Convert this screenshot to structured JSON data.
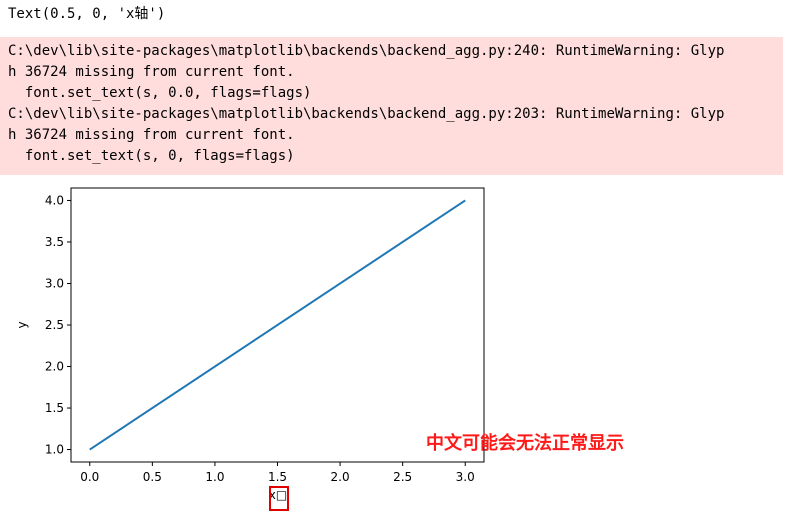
{
  "output": {
    "return_value": "Text(0.5, 0, 'x轴')"
  },
  "stderr": {
    "lines": [
      "C:\\dev\\lib\\site-packages\\matplotlib\\backends\\backend_agg.py:240: RuntimeWarning: Glyp",
      "h 36724 missing from current font.",
      "  font.set_text(s, 0.0, flags=flags)",
      "C:\\dev\\lib\\site-packages\\matplotlib\\backends\\backend_agg.py:203: RuntimeWarning: Glyp",
      "h 36724 missing from current font.",
      "  font.set_text(s, 0, flags=flags)"
    ],
    "background_color": "#ffdddd"
  },
  "chart_data": {
    "type": "line",
    "x": [
      0,
      3
    ],
    "series": [
      {
        "values": [
          1,
          4
        ],
        "color": "#1f77b4"
      }
    ],
    "xlabel": "x□",
    "ylabel": "y",
    "xlim": [
      -0.15,
      3.15
    ],
    "ylim": [
      0.85,
      4.15
    ],
    "xticks": [
      "0.0",
      "0.5",
      "1.0",
      "1.5",
      "2.0",
      "2.5",
      "3.0"
    ],
    "yticks": [
      "1.0",
      "1.5",
      "2.0",
      "2.5",
      "3.0",
      "3.5",
      "4.0"
    ],
    "grid": false
  },
  "annotation": {
    "text": "中文可能会无法正常显示",
    "color": "#ff1a1a",
    "highlight_color": "#e00000"
  }
}
